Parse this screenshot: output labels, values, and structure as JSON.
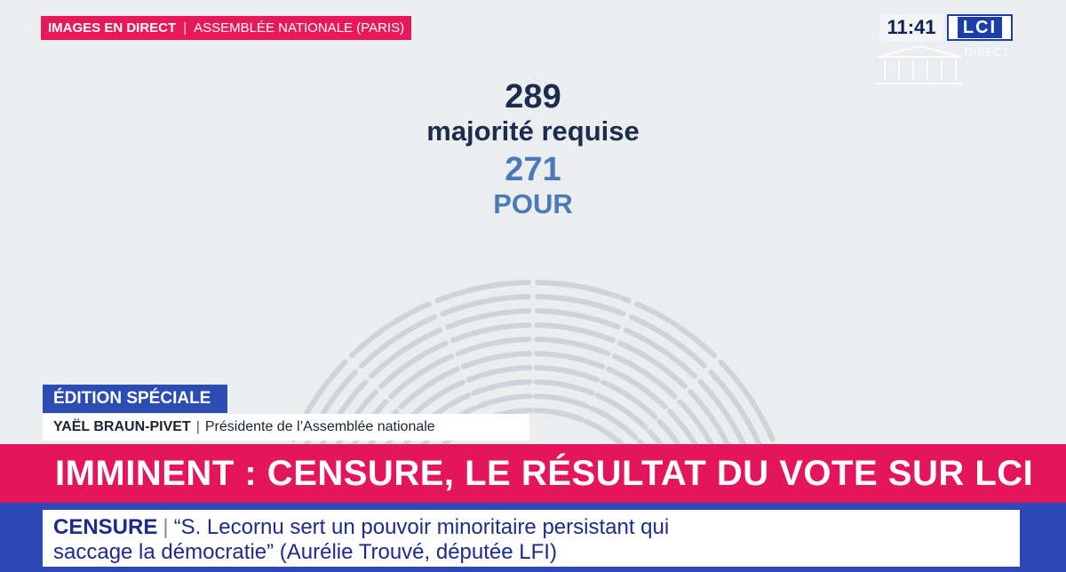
{
  "header": {
    "live_label": "IMAGES EN DIRECT",
    "location": "ASSEMBLÉE NATIONALE (PARIS)"
  },
  "channel": {
    "clock": "11:41",
    "logo": "LCI",
    "sub": "DIRECT"
  },
  "vote": {
    "majority_number": "289",
    "majority_label": "majorité requise",
    "for_number": "271",
    "for_label": "POUR"
  },
  "lower_third": {
    "edition": "ÉDITION SPÉCIALE",
    "speaker_name": "YAËL BRAUN-PIVET",
    "speaker_role": "Présidente de l’Assemblée nationale"
  },
  "headline": "IMMINENT : CENSURE, LE RÉSULTAT DU VOTE SUR LCI",
  "ticker": {
    "label": "CENSURE",
    "line1": "“S. Lecornu sert un pouvoir minoritaire persistant qui",
    "line2": "saccage la démocratie” (Aurélie Trouvé, députée LFI)"
  },
  "colors": {
    "pink": "#e4155b",
    "blue": "#2e49b4",
    "seat_empty": "#cfd3da",
    "seat_for": "#4a7ab8"
  }
}
